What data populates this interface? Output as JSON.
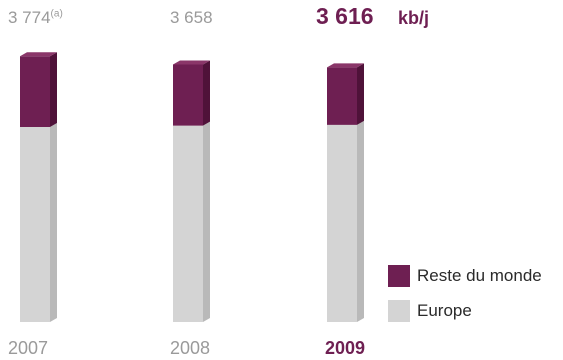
{
  "chart_data": {
    "type": "bar",
    "stacked": true,
    "unit": "kb/j",
    "categories": [
      "2007",
      "2008",
      "2009"
    ],
    "highlight_category": "2009",
    "totals": [
      "3 774",
      "3 658",
      "3 616"
    ],
    "totals_note": "(a)",
    "series": [
      {
        "name": "Europe",
        "color": "#d4d4d4",
        "values": [
          2770,
          2790,
          2800
        ]
      },
      {
        "name": "Reste du monde",
        "color": "#6e1f52",
        "values": [
          1004,
          868,
          816
        ]
      }
    ],
    "legend_position": "bottom-right",
    "grid": false
  }
}
